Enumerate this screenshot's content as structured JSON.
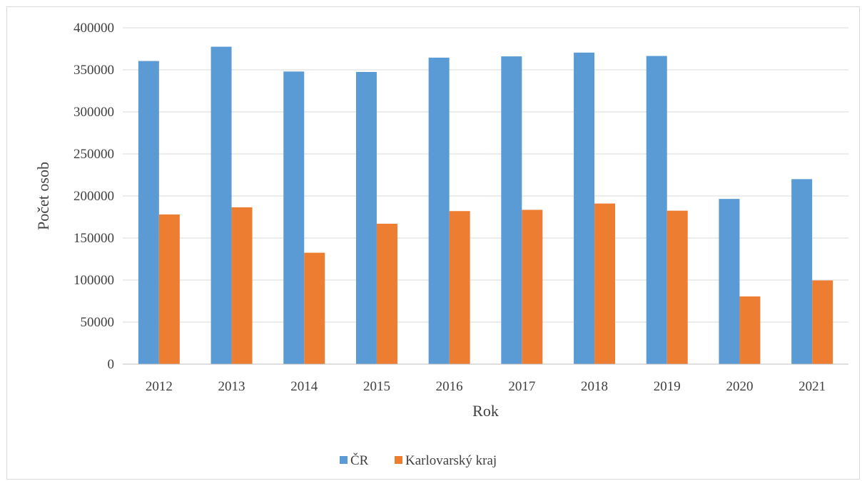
{
  "chart_data": {
    "type": "bar",
    "title": "",
    "xlabel": "Rok",
    "ylabel": "Počet osob",
    "ylim": [
      0,
      400000
    ],
    "yticks": [
      0,
      50000,
      100000,
      150000,
      200000,
      250000,
      300000,
      350000,
      400000
    ],
    "yticklabels": [
      "0",
      "50000",
      "100000",
      "150000",
      "200000",
      "250000",
      "300000",
      "350000",
      "400000"
    ],
    "grid": true,
    "legend_position": "bottom",
    "categories": [
      "2012",
      "2013",
      "2014",
      "2015",
      "2016",
      "2017",
      "2018",
      "2019",
      "2020",
      "2021"
    ],
    "series": [
      {
        "name": "ČR",
        "color": "#5b9bd5",
        "values": [
          360500,
          377500,
          348000,
          347500,
          364500,
          366000,
          370500,
          366500,
          196500,
          220000
        ]
      },
      {
        "name": "Karlovarský kraj",
        "color": "#ed7d31",
        "values": [
          178000,
          186500,
          132500,
          167000,
          182000,
          183500,
          191000,
          182500,
          80500,
          99500
        ]
      }
    ]
  }
}
